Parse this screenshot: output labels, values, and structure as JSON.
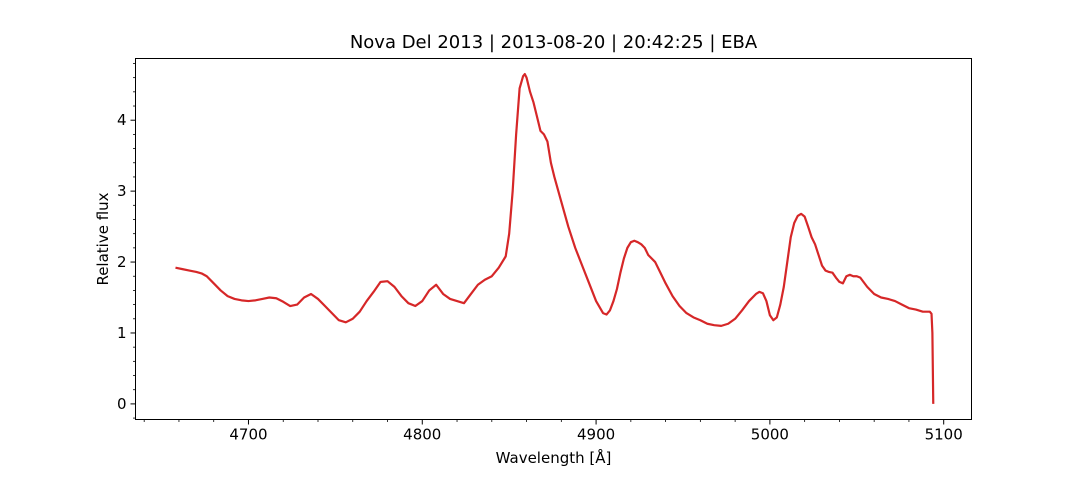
{
  "chart_data": {
    "type": "line",
    "title": "Nova Del 2013 | 2013-08-20 | 20:42:25 | EBA",
    "xlabel": "Wavelength [Å]",
    "ylabel": "Relative flux",
    "xlim": [
      4635,
      5116
    ],
    "ylim": [
      -0.22,
      4.87
    ],
    "xticks": [
      4700,
      4800,
      4900,
      5000,
      5100
    ],
    "yticks": [
      0,
      1,
      2,
      3,
      4
    ],
    "grid": false,
    "color": "#d62728",
    "series": [
      {
        "x": [
          4658,
          4662,
          4666,
          4670,
          4673,
          4676,
          4680,
          4684,
          4688,
          4692,
          4696,
          4700,
          4704,
          4708,
          4712,
          4716,
          4720,
          4724,
          4728,
          4732,
          4736,
          4740,
          4744,
          4748,
          4752,
          4756,
          4760,
          4764,
          4768,
          4772,
          4776,
          4780,
          4784,
          4788,
          4792,
          4796,
          4800,
          4804,
          4808,
          4812,
          4816,
          4820,
          4824,
          4828,
          4832,
          4836,
          4840,
          4844,
          4848,
          4850,
          4852,
          4854,
          4856,
          4858,
          4859,
          4860,
          4862,
          4864,
          4866,
          4868,
          4870,
          4872,
          4874,
          4876,
          4880,
          4884,
          4888,
          4892,
          4896,
          4900,
          4904,
          4906,
          4908,
          4910,
          4912,
          4914,
          4916,
          4918,
          4920,
          4922,
          4924,
          4926,
          4928,
          4930,
          4932,
          4934,
          4936,
          4938,
          4940,
          4944,
          4948,
          4952,
          4956,
          4960,
          4964,
          4968,
          4972,
          4976,
          4980,
          4984,
          4988,
          4992,
          4994,
          4996,
          4998,
          5000,
          5002,
          5004,
          5006,
          5008,
          5010,
          5012,
          5014,
          5016,
          5018,
          5020,
          5022,
          5024,
          5026,
          5028,
          5030,
          5032,
          5034,
          5036,
          5038,
          5040,
          5042,
          5044,
          5046,
          5048,
          5050,
          5052,
          5056,
          5060,
          5064,
          5068,
          5072,
          5076,
          5080,
          5084,
          5088,
          5092,
          5093,
          5093.5,
          5094
        ],
        "y": [
          1.92,
          1.9,
          1.88,
          1.86,
          1.84,
          1.8,
          1.7,
          1.6,
          1.52,
          1.48,
          1.46,
          1.45,
          1.46,
          1.48,
          1.5,
          1.49,
          1.44,
          1.38,
          1.4,
          1.5,
          1.55,
          1.48,
          1.38,
          1.28,
          1.18,
          1.15,
          1.2,
          1.3,
          1.45,
          1.58,
          1.72,
          1.73,
          1.65,
          1.52,
          1.42,
          1.38,
          1.45,
          1.6,
          1.68,
          1.55,
          1.48,
          1.45,
          1.42,
          1.55,
          1.68,
          1.75,
          1.8,
          1.92,
          2.08,
          2.4,
          3.0,
          3.8,
          4.45,
          4.62,
          4.65,
          4.6,
          4.4,
          4.25,
          4.05,
          3.85,
          3.8,
          3.7,
          3.4,
          3.2,
          2.85,
          2.5,
          2.2,
          1.95,
          1.7,
          1.45,
          1.28,
          1.26,
          1.32,
          1.45,
          1.62,
          1.85,
          2.05,
          2.2,
          2.28,
          2.3,
          2.28,
          2.25,
          2.2,
          2.1,
          2.05,
          2.0,
          1.9,
          1.8,
          1.7,
          1.52,
          1.38,
          1.28,
          1.22,
          1.18,
          1.13,
          1.11,
          1.1,
          1.13,
          1.2,
          1.32,
          1.45,
          1.55,
          1.58,
          1.56,
          1.45,
          1.25,
          1.18,
          1.22,
          1.4,
          1.65,
          2.0,
          2.35,
          2.55,
          2.65,
          2.68,
          2.64,
          2.5,
          2.35,
          2.25,
          2.1,
          1.95,
          1.88,
          1.86,
          1.85,
          1.78,
          1.72,
          1.7,
          1.8,
          1.82,
          1.8,
          1.8,
          1.78,
          1.65,
          1.55,
          1.5,
          1.48,
          1.45,
          1.4,
          1.35,
          1.33,
          1.3,
          1.3,
          1.27,
          1.0,
          0.0
        ]
      }
    ]
  }
}
